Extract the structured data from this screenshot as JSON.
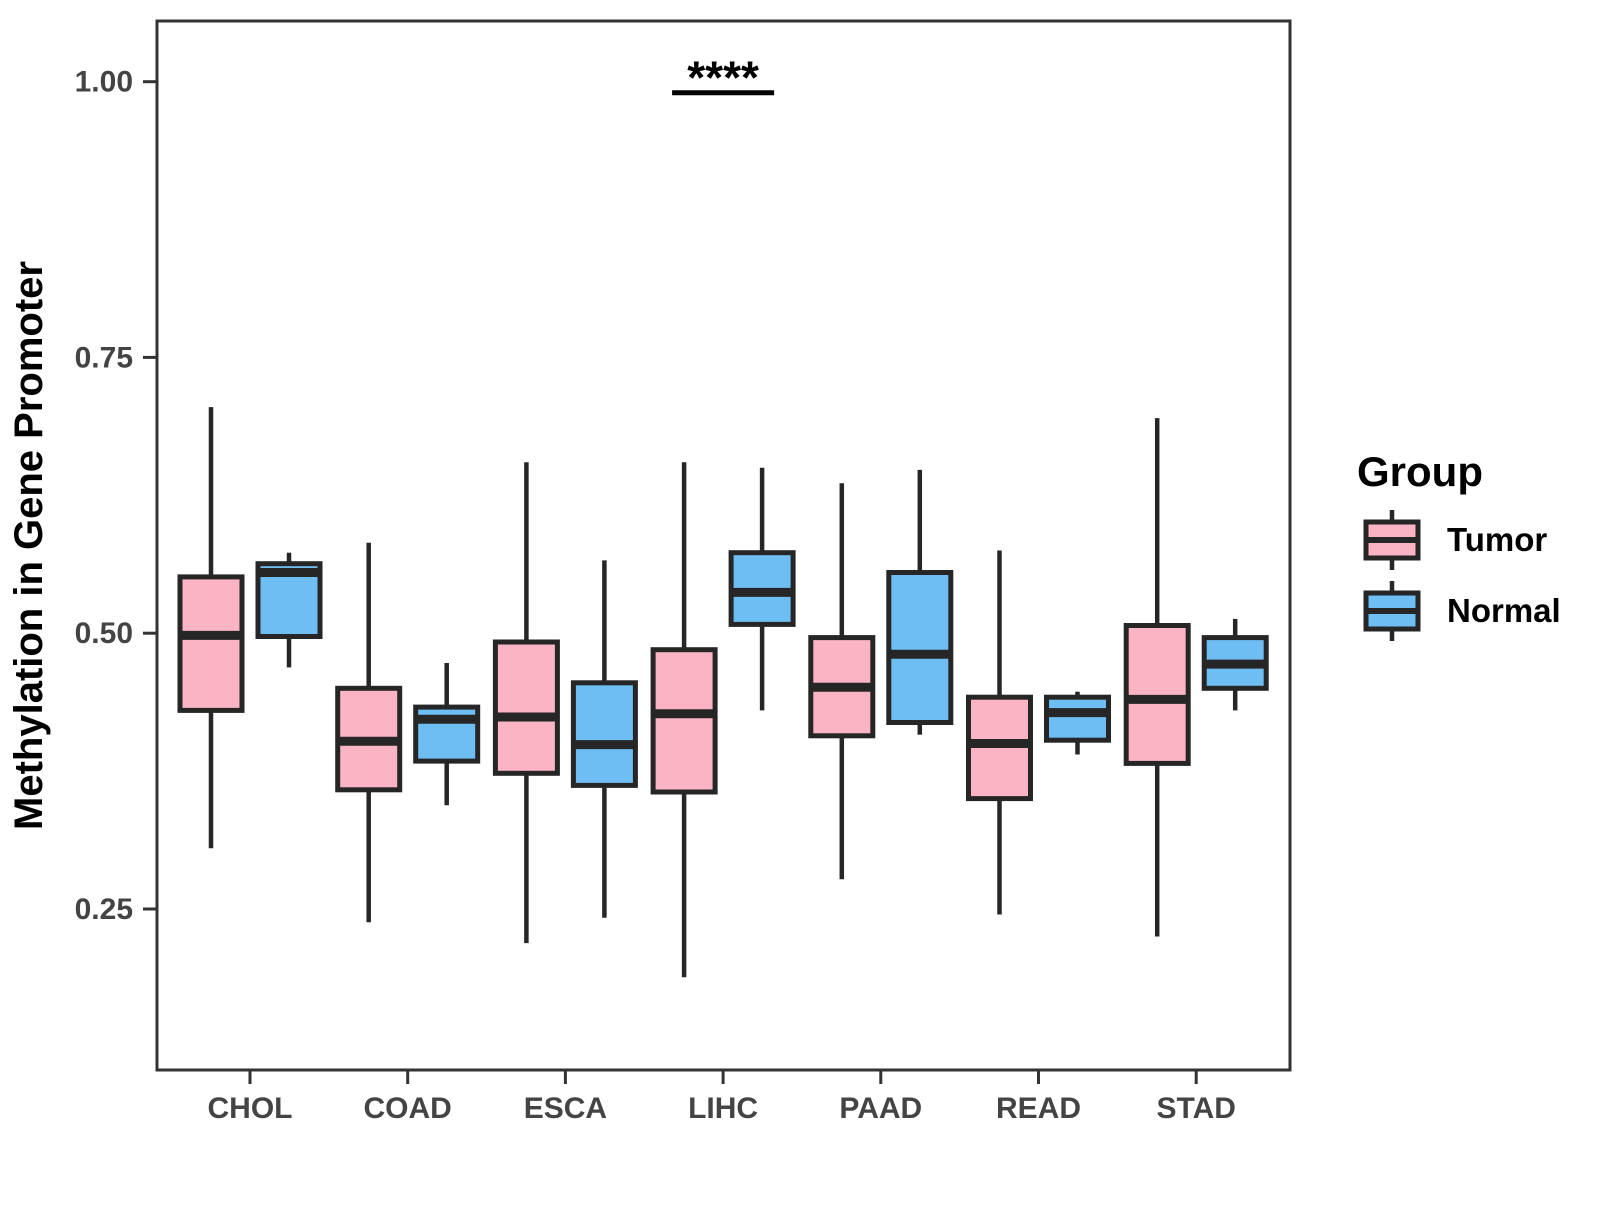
{
  "figure": {
    "background": "#FFFFFF"
  },
  "chart_data": {
    "type": "boxplot",
    "title": "",
    "xlabel": "",
    "ylabel": "Methylation in Gene Promoter",
    "categories": [
      "CHOL",
      "COAD",
      "ESCA",
      "LIHC",
      "PAAD",
      "READ",
      "STAD"
    ],
    "y_ticks": [
      1.0,
      0.75,
      0.5,
      0.25
    ],
    "y_tick_labels": [
      "1.00",
      "0.75",
      "0.50",
      "0.25"
    ],
    "ylim": [
      0.1,
      1.06
    ],
    "grid": "off",
    "legend_position": "right",
    "legend": {
      "title": "Group",
      "entries": [
        {
          "label": "Tumor"
        },
        {
          "label": "Normal"
        }
      ]
    },
    "series": [
      {
        "name": "Tumor",
        "color": "#FBB4C3",
        "boxes": [
          {
            "category": "CHOL",
            "min": 0.305,
            "q1": 0.43,
            "median": 0.498,
            "q3": 0.551,
            "max": 0.705
          },
          {
            "category": "COAD",
            "min": 0.238,
            "q1": 0.358,
            "median": 0.402,
            "q3": 0.45,
            "max": 0.582
          },
          {
            "category": "ESCA",
            "min": 0.219,
            "q1": 0.373,
            "median": 0.424,
            "q3": 0.492,
            "max": 0.655
          },
          {
            "category": "LIHC",
            "min": 0.188,
            "q1": 0.356,
            "median": 0.427,
            "q3": 0.485,
            "max": 0.655
          },
          {
            "category": "PAAD",
            "min": 0.277,
            "q1": 0.407,
            "median": 0.451,
            "q3": 0.496,
            "max": 0.636
          },
          {
            "category": "READ",
            "min": 0.245,
            "q1": 0.35,
            "median": 0.4,
            "q3": 0.442,
            "max": 0.575
          },
          {
            "category": "STAD",
            "min": 0.225,
            "q1": 0.382,
            "median": 0.44,
            "q3": 0.507,
            "max": 0.695
          }
        ]
      },
      {
        "name": "Normal",
        "color": "#6FBEF3",
        "boxes": [
          {
            "category": "CHOL",
            "min": 0.469,
            "q1": 0.497,
            "median": 0.555,
            "q3": 0.563,
            "max": 0.573
          },
          {
            "category": "COAD",
            "min": 0.344,
            "q1": 0.384,
            "median": 0.422,
            "q3": 0.433,
            "max": 0.473
          },
          {
            "category": "ESCA",
            "min": 0.242,
            "q1": 0.362,
            "median": 0.399,
            "q3": 0.455,
            "max": 0.566
          },
          {
            "category": "LIHC",
            "min": 0.43,
            "q1": 0.508,
            "median": 0.537,
            "q3": 0.573,
            "max": 0.65
          },
          {
            "category": "PAAD",
            "min": 0.408,
            "q1": 0.419,
            "median": 0.481,
            "q3": 0.555,
            "max": 0.648
          },
          {
            "category": "READ",
            "min": 0.39,
            "q1": 0.403,
            "median": 0.428,
            "q3": 0.442,
            "max": 0.447
          },
          {
            "category": "STAD",
            "min": 0.43,
            "q1": 0.45,
            "median": 0.472,
            "q3": 0.496,
            "max": 0.513
          }
        ]
      }
    ],
    "annotation": {
      "text": "****",
      "category": "LIHC",
      "line_y": 0.99
    },
    "style_colors": {
      "box_border": "#262626",
      "axis_text": "#444444",
      "panel_border": "#333333",
      "annotation_color": "#000000"
    }
  }
}
